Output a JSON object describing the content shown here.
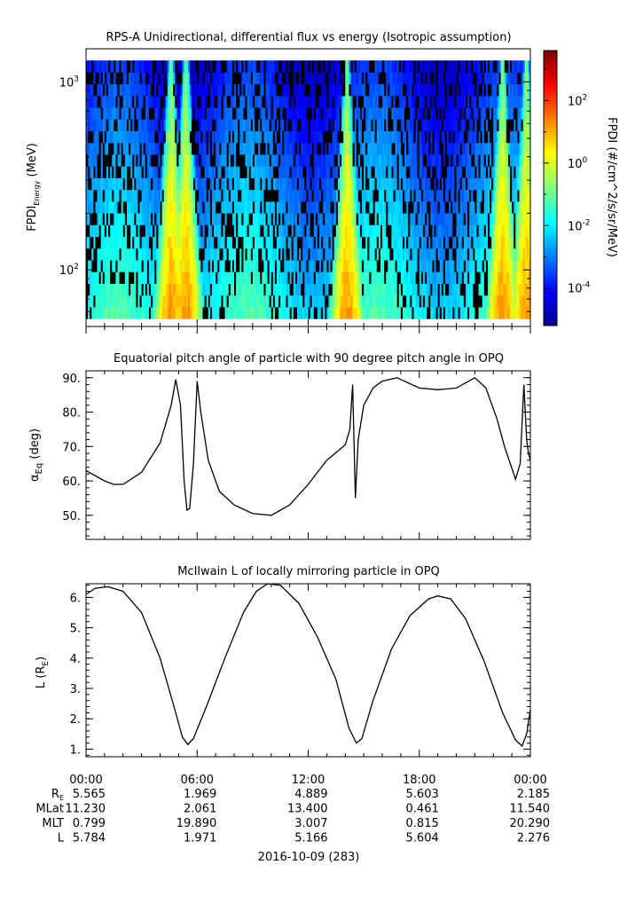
{
  "chart_data": [
    {
      "type": "heatmap",
      "title": "RPS-A Unidirectional, differential flux vs energy (Isotropic assumption)",
      "ylabel": "FPDI",
      "ylabel_sub": "Energy",
      "ylabel_unit": "(MeV)",
      "y_scale": "log",
      "ylim": [
        50,
        1500
      ],
      "yticks": [
        {
          "value": 100,
          "base": "10",
          "exp": "2"
        },
        {
          "value": 1000,
          "base": "10",
          "exp": "3"
        }
      ],
      "energy_range": [
        55,
        1300
      ],
      "colorbar": {
        "label": "FPDI (#/cm^2/s/sr/MeV)",
        "log10_range": [
          -5.2,
          3.6
        ],
        "ticks": [
          {
            "exp": "-4",
            "value": -4
          },
          {
            "exp": "-2",
            "value": -2
          },
          {
            "exp": "0",
            "value": 0
          },
          {
            "exp": "2",
            "value": 2
          }
        ]
      },
      "peak_hours": [
        4.6,
        5.4,
        14.1,
        22.5,
        23.8
      ],
      "value_range_log10": [
        -5,
        2
      ]
    },
    {
      "type": "line",
      "title": "Equatorial pitch angle of particle with 90 degree pitch angle in OPQ",
      "ylabel": "α",
      "ylabel_sub": "Eq",
      "ylabel_unit": "(deg)",
      "ylim": [
        43,
        92
      ],
      "yticks": [
        "50.",
        "60.",
        "70.",
        "80.",
        "90."
      ],
      "x_hours": [
        0,
        1,
        1.5,
        2,
        3,
        4,
        4.6,
        4.85,
        5.1,
        5.3,
        5.45,
        5.6,
        5.8,
        6.0,
        6.2,
        6.6,
        7.2,
        8,
        9,
        10,
        11,
        12,
        13,
        14.0,
        14.25,
        14.4,
        14.55,
        14.7,
        15.0,
        15.5,
        16.0,
        16.8,
        18,
        19,
        20,
        21.0,
        21.6,
        22.2,
        22.6,
        23.2,
        23.45,
        23.65,
        23.8,
        23.9,
        24
      ],
      "y_values": [
        63,
        60,
        59,
        59,
        62.5,
        71,
        82,
        89.5,
        82,
        60,
        51.5,
        52,
        65,
        89,
        80,
        66,
        57,
        53,
        50.5,
        50,
        53,
        59,
        66,
        70.5,
        75,
        88,
        55,
        72,
        82,
        87,
        89,
        90,
        87,
        86.5,
        87,
        90,
        87,
        78,
        70,
        60.5,
        65,
        88,
        72,
        68,
        66
      ]
    },
    {
      "type": "line",
      "title": "McIlwain L of locally mirroring particle in OPQ",
      "ylabel": "L (R",
      "ylabel_sub": "E",
      "ylabel_unit": ")",
      "ylim": [
        0.75,
        6.45
      ],
      "yticks": [
        "1.",
        "2.",
        "3.",
        "4.",
        "5.",
        "6."
      ],
      "x_hours": [
        0,
        0.5,
        1.2,
        2,
        3,
        4,
        4.8,
        5.2,
        5.5,
        5.8,
        6.5,
        7.5,
        8.5,
        9.2,
        9.8,
        10.5,
        11.5,
        12.5,
        13.5,
        14.2,
        14.6,
        14.9,
        15.5,
        16.5,
        17.5,
        18.5,
        19.0,
        19.7,
        20.5,
        21.5,
        22.5,
        23.2,
        23.55,
        23.8,
        24
      ],
      "y_values": [
        6.1,
        6.3,
        6.35,
        6.2,
        5.5,
        4.0,
        2.3,
        1.4,
        1.15,
        1.35,
        2.4,
        4.0,
        5.5,
        6.2,
        6.45,
        6.4,
        5.8,
        4.7,
        3.3,
        1.7,
        1.2,
        1.35,
        2.6,
        4.3,
        5.4,
        5.95,
        6.05,
        5.95,
        5.3,
        3.9,
        2.2,
        1.3,
        1.1,
        1.5,
        2.3
      ]
    }
  ],
  "time_axis": {
    "xlim_hours": [
      0,
      24
    ],
    "tick_labels": [
      "00:00",
      "06:00",
      "12:00",
      "18:00",
      "00:00"
    ],
    "date_label": "2016-10-09 (283)"
  },
  "ephemeris": {
    "rows": [
      {
        "label": "R",
        "label_sub": "E",
        "values": [
          "5.565",
          "1.969",
          "4.889",
          "5.603",
          "2.185"
        ]
      },
      {
        "label": "MLat",
        "label_sub": "",
        "values": [
          "11.230",
          "2.061",
          "13.400",
          "0.461",
          "11.540"
        ]
      },
      {
        "label": "MLT",
        "label_sub": "",
        "values": [
          "0.799",
          "19.890",
          "3.007",
          "0.815",
          "20.290"
        ]
      },
      {
        "label": "L",
        "label_sub": "",
        "values": [
          "5.784",
          "1.971",
          "5.166",
          "5.604",
          "2.276"
        ]
      }
    ]
  },
  "colors": {
    "line": "#000000",
    "axis": "#000000",
    "background": "#ffffff"
  }
}
